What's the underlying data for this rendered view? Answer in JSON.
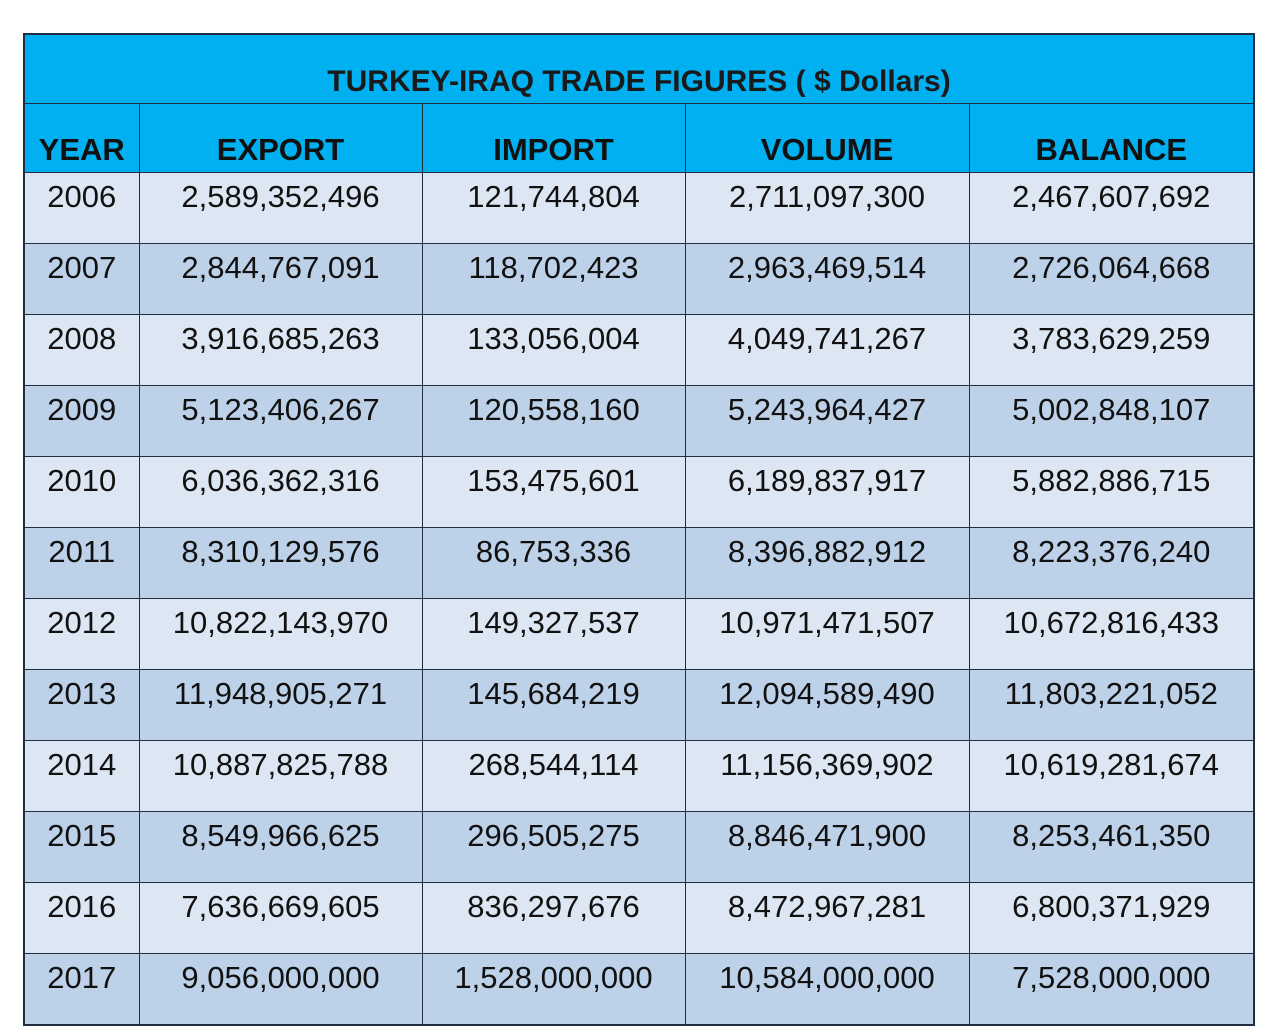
{
  "colors": {
    "header_bg": "#00b0f0",
    "row_light": "#dde7f3",
    "row_dark": "#bdd1e9",
    "border": "#1f2f3f"
  },
  "chart_data": {
    "type": "table",
    "title": "TURKEY-IRAQ TRADE FIGURES ( $ Dollars)",
    "columns": [
      "YEAR",
      "EXPORT",
      "IMPORT",
      "VOLUME",
      "BALANCE"
    ],
    "rows": [
      [
        "2006",
        "2,589,352,496",
        "121,744,804",
        "2,711,097,300",
        "2,467,607,692"
      ],
      [
        "2007",
        "2,844,767,091",
        "118,702,423",
        "2,963,469,514",
        "2,726,064,668"
      ],
      [
        "2008",
        "3,916,685,263",
        "133,056,004",
        "4,049,741,267",
        "3,783,629,259"
      ],
      [
        "2009",
        "5,123,406,267",
        "120,558,160",
        "5,243,964,427",
        "5,002,848,107"
      ],
      [
        "2010",
        "6,036,362,316",
        "153,475,601",
        "6,189,837,917",
        "5,882,886,715"
      ],
      [
        "2011",
        "8,310,129,576",
        "86,753,336",
        "8,396,882,912",
        "8,223,376,240"
      ],
      [
        "2012",
        "10,822,143,970",
        "149,327,537",
        "10,971,471,507",
        "10,672,816,433"
      ],
      [
        "2013",
        "11,948,905,271",
        "145,684,219",
        "12,094,589,490",
        "11,803,221,052"
      ],
      [
        "2014",
        "10,887,825,788",
        "268,544,114",
        "11,156,369,902",
        "10,619,281,674"
      ],
      [
        "2015",
        "8,549,966,625",
        "296,505,275",
        "8,846,471,900",
        "8,253,461,350"
      ],
      [
        "2016",
        "7,636,669,605",
        "836,297,676",
        "8,472,967,281",
        "6,800,371,929"
      ],
      [
        "2017",
        "9,056,000,000",
        "1,528,000,000",
        "10,584,000,000",
        "7,528,000,000"
      ]
    ]
  }
}
